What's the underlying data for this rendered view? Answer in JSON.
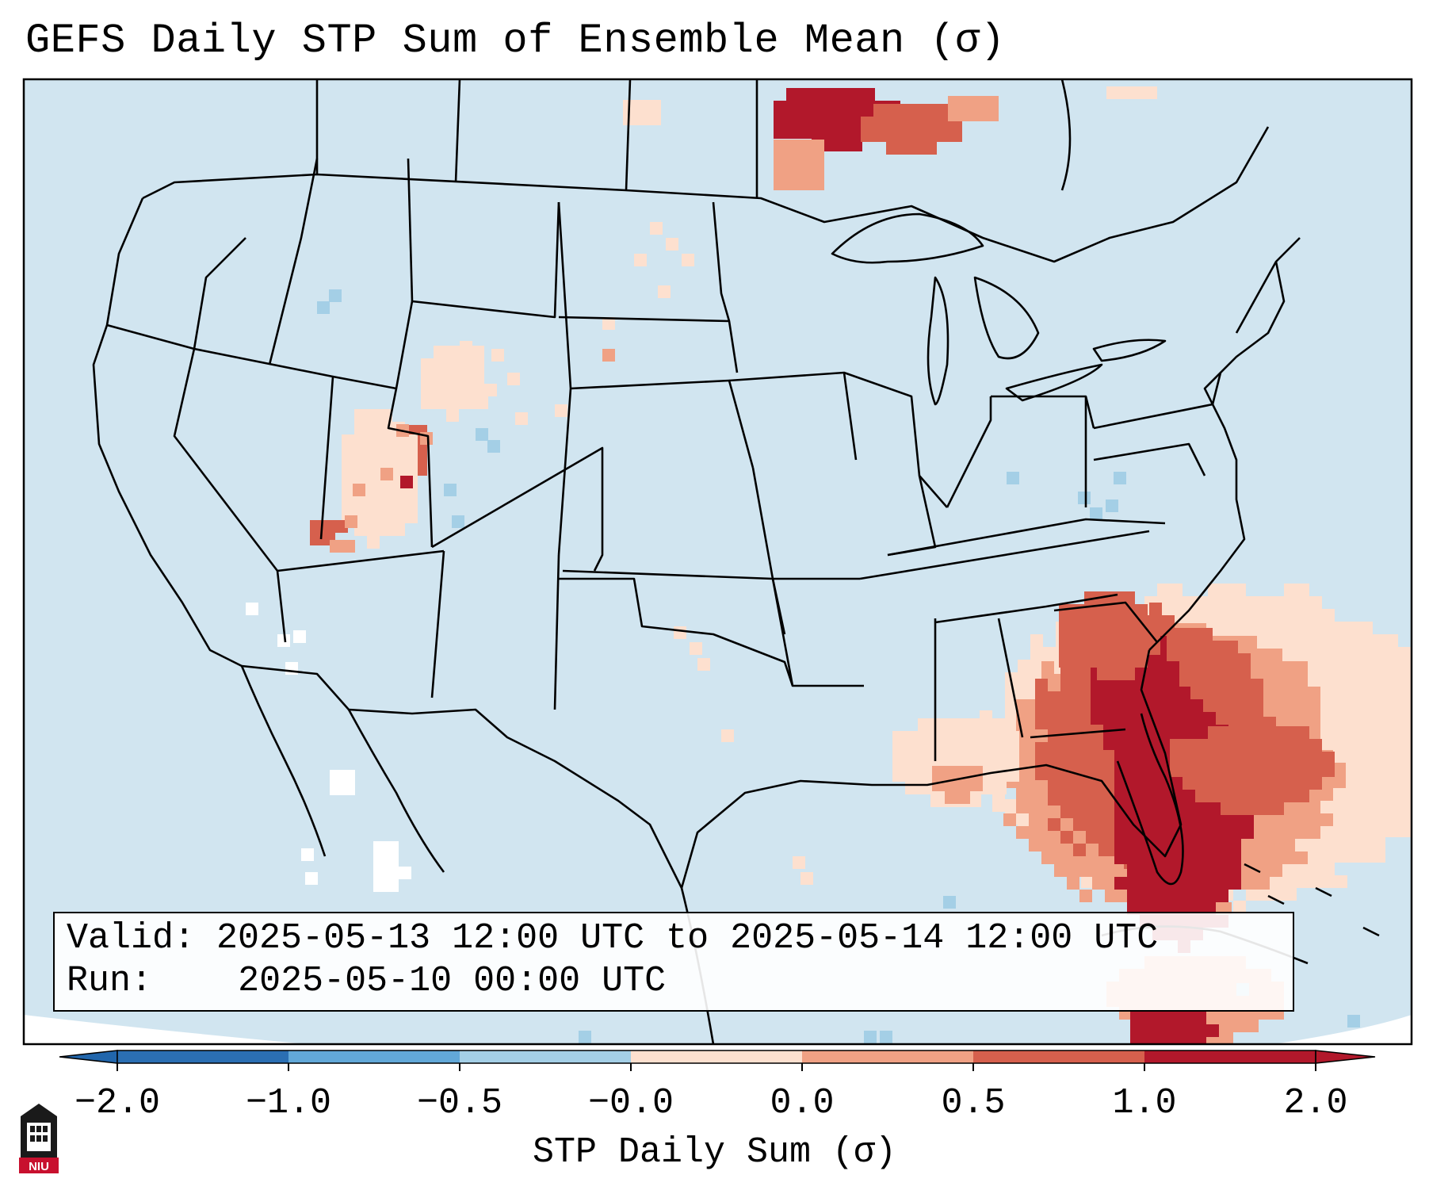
{
  "title": "GEFS Daily STP Sum of Ensemble Mean (σ)",
  "info": {
    "valid_label": "Valid:",
    "valid_value": "2025-05-13 12:00 UTC to 2025-05-14 12:00 UTC",
    "run_label": "Run:",
    "run_value": "2025-05-10 00:00 UTC"
  },
  "colorbar": {
    "title": "STP Daily Sum (σ)",
    "ticks": [
      "−2.0",
      "−1.0",
      "−0.5",
      "−0.0",
      "0.0",
      "0.5",
      "1.0",
      "2.0"
    ],
    "colors": [
      "#2b6fb3",
      "#62a8d8",
      "#a4cfe6",
      "#eaf4f9",
      "#fde0cf",
      "#f0a184",
      "#d6604d",
      "#b2182b"
    ],
    "extend_low_color": "#2166ac",
    "extend_high_color": "#b2182b"
  },
  "map": {
    "background_color": "#d1e5f0",
    "border_color": "#000000"
  },
  "logo": {
    "text": "NIU"
  }
}
